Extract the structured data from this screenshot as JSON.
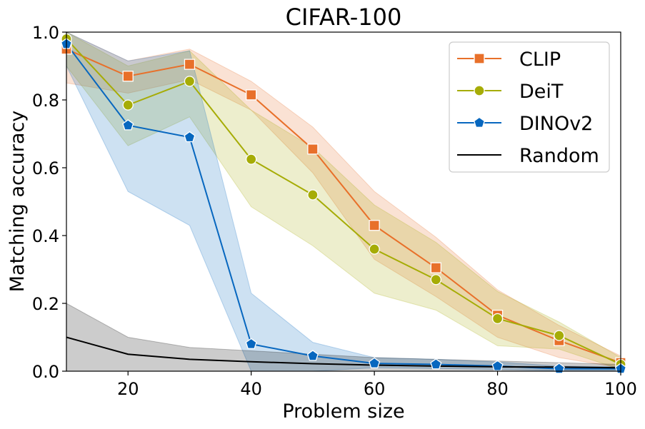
{
  "chart_data": {
    "type": "line",
    "title": "CIFAR-100",
    "xlabel": "Problem size",
    "ylabel": "Matching accuracy",
    "xlim": [
      10,
      100
    ],
    "ylim": [
      0,
      1
    ],
    "xticks": [
      20,
      40,
      60,
      80,
      100
    ],
    "xtick_labels": [
      "20",
      "40",
      "60",
      "80",
      "100"
    ],
    "yticks": [
      0,
      0.2,
      0.4,
      0.6,
      0.8,
      1.0
    ],
    "ytick_labels": [
      "0.0",
      "0.2",
      "0.4",
      "0.6",
      "0.8",
      "1.0"
    ],
    "grid": false,
    "legend_position": "top-right",
    "x": [
      10,
      20,
      30,
      40,
      50,
      60,
      70,
      80,
      90,
      100
    ],
    "series": [
      {
        "name": "CLIP",
        "color": "#E8702A",
        "marker": "square",
        "values": [
          0.95,
          0.87,
          0.905,
          0.815,
          0.655,
          0.43,
          0.305,
          0.165,
          0.09,
          0.025
        ],
        "band_lower": [
          0.85,
          0.82,
          0.86,
          0.77,
          0.585,
          0.33,
          0.22,
          0.1,
          0.04,
          0.01
        ],
        "band_upper": [
          1.0,
          0.915,
          0.95,
          0.855,
          0.72,
          0.53,
          0.395,
          0.24,
          0.135,
          0.045
        ]
      },
      {
        "name": "DeiT",
        "color": "#A6AC06",
        "marker": "circle",
        "values": [
          0.98,
          0.785,
          0.855,
          0.625,
          0.52,
          0.36,
          0.27,
          0.155,
          0.105,
          0.02
        ],
        "band_lower": [
          0.9,
          0.665,
          0.75,
          0.485,
          0.37,
          0.23,
          0.18,
          0.075,
          0.065,
          0.005
        ],
        "band_upper": [
          1.0,
          0.9,
          0.945,
          0.77,
          0.66,
          0.49,
          0.38,
          0.235,
          0.145,
          0.04
        ]
      },
      {
        "name": "DINOv2",
        "color": "#0767BF",
        "marker": "pentagon",
        "values": [
          0.965,
          0.725,
          0.69,
          0.08,
          0.045,
          0.023,
          0.02,
          0.015,
          0.007,
          0.007
        ],
        "band_lower": [
          0.9,
          0.53,
          0.43,
          0.0,
          0.0,
          0.01,
          0.008,
          0.005,
          0.002,
          0.002
        ],
        "band_upper": [
          1.0,
          0.915,
          0.945,
          0.23,
          0.085,
          0.04,
          0.035,
          0.027,
          0.015,
          0.013
        ]
      },
      {
        "name": "Random",
        "color": "#000000",
        "marker": "none",
        "values": [
          0.1,
          0.05,
          0.035,
          0.028,
          0.022,
          0.018,
          0.015,
          0.013,
          0.012,
          0.01
        ],
        "band_lower": [
          0.0,
          0.0,
          0.0,
          0.0,
          0.0,
          0.0,
          0.0,
          0.0,
          0.0,
          0.0
        ],
        "band_upper": [
          0.2,
          0.1,
          0.07,
          0.06,
          0.05,
          0.04,
          0.035,
          0.03,
          0.025,
          0.02
        ]
      }
    ]
  }
}
